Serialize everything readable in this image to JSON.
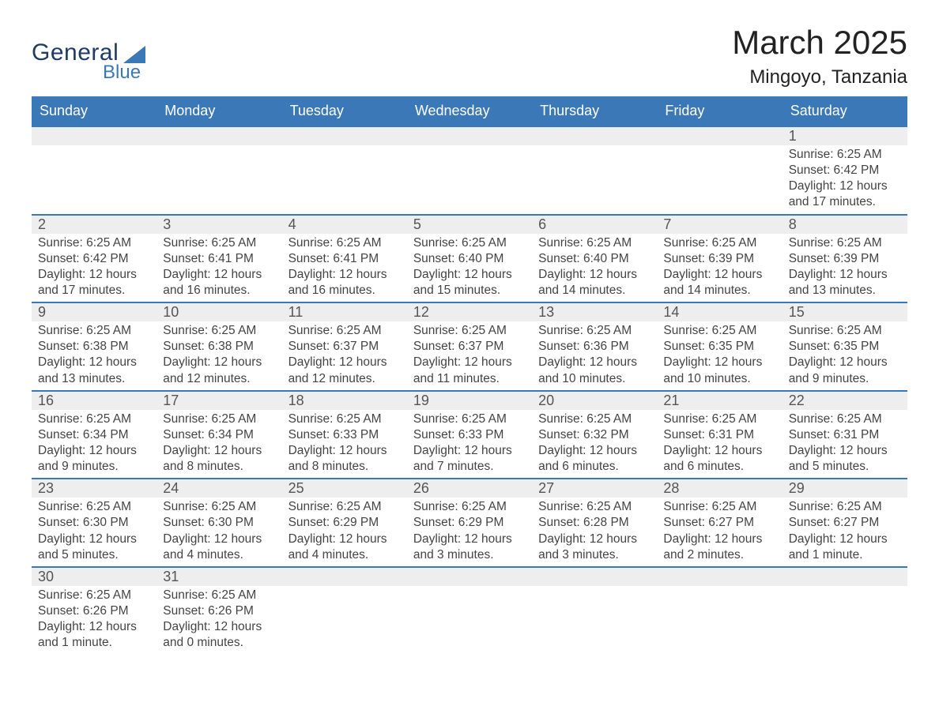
{
  "brand": {
    "main": "General",
    "sub": "Blue"
  },
  "title": "March 2025",
  "subtitle": "Mingoyo, Tanzania",
  "colors": {
    "header": "#3b78b8",
    "cell_bg": "#eeeeee",
    "row_sep": "#3b78b8",
    "text": "#333333"
  },
  "weekdays": [
    "Sunday",
    "Monday",
    "Tuesday",
    "Wednesday",
    "Thursday",
    "Friday",
    "Saturday"
  ],
  "weeks": [
    {
      "daynums": [
        "",
        "",
        "",
        "",
        "",
        "",
        "1"
      ],
      "info": [
        null,
        null,
        null,
        null,
        null,
        null,
        {
          "sunrise": "Sunrise: 6:25 AM",
          "sunset": "Sunset: 6:42 PM",
          "day1": "Daylight: 12 hours",
          "day2": "and 17 minutes."
        }
      ]
    },
    {
      "daynums": [
        "2",
        "3",
        "4",
        "5",
        "6",
        "7",
        "8"
      ],
      "info": [
        {
          "sunrise": "Sunrise: 6:25 AM",
          "sunset": "Sunset: 6:42 PM",
          "day1": "Daylight: 12 hours",
          "day2": "and 17 minutes."
        },
        {
          "sunrise": "Sunrise: 6:25 AM",
          "sunset": "Sunset: 6:41 PM",
          "day1": "Daylight: 12 hours",
          "day2": "and 16 minutes."
        },
        {
          "sunrise": "Sunrise: 6:25 AM",
          "sunset": "Sunset: 6:41 PM",
          "day1": "Daylight: 12 hours",
          "day2": "and 16 minutes."
        },
        {
          "sunrise": "Sunrise: 6:25 AM",
          "sunset": "Sunset: 6:40 PM",
          "day1": "Daylight: 12 hours",
          "day2": "and 15 minutes."
        },
        {
          "sunrise": "Sunrise: 6:25 AM",
          "sunset": "Sunset: 6:40 PM",
          "day1": "Daylight: 12 hours",
          "day2": "and 14 minutes."
        },
        {
          "sunrise": "Sunrise: 6:25 AM",
          "sunset": "Sunset: 6:39 PM",
          "day1": "Daylight: 12 hours",
          "day2": "and 14 minutes."
        },
        {
          "sunrise": "Sunrise: 6:25 AM",
          "sunset": "Sunset: 6:39 PM",
          "day1": "Daylight: 12 hours",
          "day2": "and 13 minutes."
        }
      ]
    },
    {
      "daynums": [
        "9",
        "10",
        "11",
        "12",
        "13",
        "14",
        "15"
      ],
      "info": [
        {
          "sunrise": "Sunrise: 6:25 AM",
          "sunset": "Sunset: 6:38 PM",
          "day1": "Daylight: 12 hours",
          "day2": "and 13 minutes."
        },
        {
          "sunrise": "Sunrise: 6:25 AM",
          "sunset": "Sunset: 6:38 PM",
          "day1": "Daylight: 12 hours",
          "day2": "and 12 minutes."
        },
        {
          "sunrise": "Sunrise: 6:25 AM",
          "sunset": "Sunset: 6:37 PM",
          "day1": "Daylight: 12 hours",
          "day2": "and 12 minutes."
        },
        {
          "sunrise": "Sunrise: 6:25 AM",
          "sunset": "Sunset: 6:37 PM",
          "day1": "Daylight: 12 hours",
          "day2": "and 11 minutes."
        },
        {
          "sunrise": "Sunrise: 6:25 AM",
          "sunset": "Sunset: 6:36 PM",
          "day1": "Daylight: 12 hours",
          "day2": "and 10 minutes."
        },
        {
          "sunrise": "Sunrise: 6:25 AM",
          "sunset": "Sunset: 6:35 PM",
          "day1": "Daylight: 12 hours",
          "day2": "and 10 minutes."
        },
        {
          "sunrise": "Sunrise: 6:25 AM",
          "sunset": "Sunset: 6:35 PM",
          "day1": "Daylight: 12 hours",
          "day2": "and 9 minutes."
        }
      ]
    },
    {
      "daynums": [
        "16",
        "17",
        "18",
        "19",
        "20",
        "21",
        "22"
      ],
      "info": [
        {
          "sunrise": "Sunrise: 6:25 AM",
          "sunset": "Sunset: 6:34 PM",
          "day1": "Daylight: 12 hours",
          "day2": "and 9 minutes."
        },
        {
          "sunrise": "Sunrise: 6:25 AM",
          "sunset": "Sunset: 6:34 PM",
          "day1": "Daylight: 12 hours",
          "day2": "and 8 minutes."
        },
        {
          "sunrise": "Sunrise: 6:25 AM",
          "sunset": "Sunset: 6:33 PM",
          "day1": "Daylight: 12 hours",
          "day2": "and 8 minutes."
        },
        {
          "sunrise": "Sunrise: 6:25 AM",
          "sunset": "Sunset: 6:33 PM",
          "day1": "Daylight: 12 hours",
          "day2": "and 7 minutes."
        },
        {
          "sunrise": "Sunrise: 6:25 AM",
          "sunset": "Sunset: 6:32 PM",
          "day1": "Daylight: 12 hours",
          "day2": "and 6 minutes."
        },
        {
          "sunrise": "Sunrise: 6:25 AM",
          "sunset": "Sunset: 6:31 PM",
          "day1": "Daylight: 12 hours",
          "day2": "and 6 minutes."
        },
        {
          "sunrise": "Sunrise: 6:25 AM",
          "sunset": "Sunset: 6:31 PM",
          "day1": "Daylight: 12 hours",
          "day2": "and 5 minutes."
        }
      ]
    },
    {
      "daynums": [
        "23",
        "24",
        "25",
        "26",
        "27",
        "28",
        "29"
      ],
      "info": [
        {
          "sunrise": "Sunrise: 6:25 AM",
          "sunset": "Sunset: 6:30 PM",
          "day1": "Daylight: 12 hours",
          "day2": "and 5 minutes."
        },
        {
          "sunrise": "Sunrise: 6:25 AM",
          "sunset": "Sunset: 6:30 PM",
          "day1": "Daylight: 12 hours",
          "day2": "and 4 minutes."
        },
        {
          "sunrise": "Sunrise: 6:25 AM",
          "sunset": "Sunset: 6:29 PM",
          "day1": "Daylight: 12 hours",
          "day2": "and 4 minutes."
        },
        {
          "sunrise": "Sunrise: 6:25 AM",
          "sunset": "Sunset: 6:29 PM",
          "day1": "Daylight: 12 hours",
          "day2": "and 3 minutes."
        },
        {
          "sunrise": "Sunrise: 6:25 AM",
          "sunset": "Sunset: 6:28 PM",
          "day1": "Daylight: 12 hours",
          "day2": "and 3 minutes."
        },
        {
          "sunrise": "Sunrise: 6:25 AM",
          "sunset": "Sunset: 6:27 PM",
          "day1": "Daylight: 12 hours",
          "day2": "and 2 minutes."
        },
        {
          "sunrise": "Sunrise: 6:25 AM",
          "sunset": "Sunset: 6:27 PM",
          "day1": "Daylight: 12 hours",
          "day2": "and 1 minute."
        }
      ]
    },
    {
      "daynums": [
        "30",
        "31",
        "",
        "",
        "",
        "",
        ""
      ],
      "info": [
        {
          "sunrise": "Sunrise: 6:25 AM",
          "sunset": "Sunset: 6:26 PM",
          "day1": "Daylight: 12 hours",
          "day2": "and 1 minute."
        },
        {
          "sunrise": "Sunrise: 6:25 AM",
          "sunset": "Sunset: 6:26 PM",
          "day1": "Daylight: 12 hours",
          "day2": "and 0 minutes."
        },
        null,
        null,
        null,
        null,
        null
      ]
    }
  ]
}
